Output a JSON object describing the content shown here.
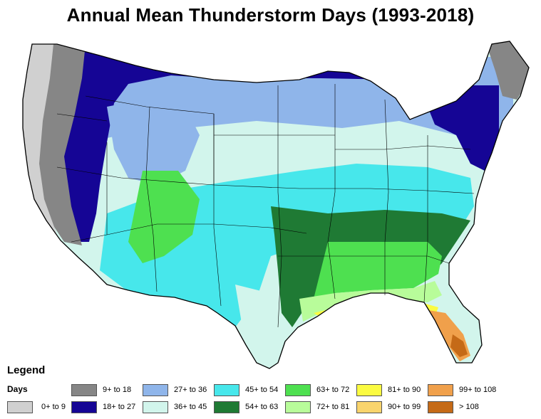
{
  "title": "Annual Mean Thunderstorm Days (1993-2018)",
  "legend": {
    "title": "Legend",
    "subtitle": "Days",
    "items": [
      {
        "label": "0+ to 9",
        "color": "#d0d0d0"
      },
      {
        "label": "9+ to 18",
        "color": "#868686"
      },
      {
        "label": "18+ to 27",
        "color": "#150595"
      },
      {
        "label": "27+ to 36",
        "color": "#8fb5ea"
      },
      {
        "label": "36+ to 45",
        "color": "#d2f5ec"
      },
      {
        "label": "45+ to 54",
        "color": "#47e7eb"
      },
      {
        "label": "54+ to 63",
        "color": "#1f7a34"
      },
      {
        "label": "63+ to 72",
        "color": "#4ee050"
      },
      {
        "label": "72+ to 81",
        "color": "#b8fc9a"
      },
      {
        "label": "81+ to 90",
        "color": "#fbfb41"
      },
      {
        "label": "90+ to 99",
        "color": "#f9d46c"
      },
      {
        "label": "99+ to 108",
        "color": "#f0a04b"
      },
      {
        "label": "> 108",
        "color": "#c56a17"
      }
    ]
  }
}
